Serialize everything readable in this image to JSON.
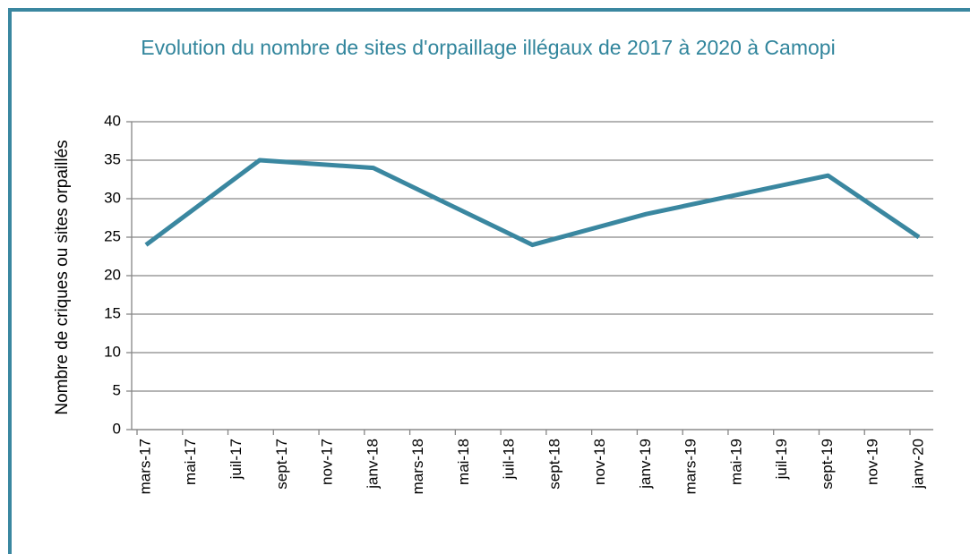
{
  "chart_data": {
    "type": "line",
    "title": "Evolution du nombre de sites d'orpaillage illégaux de 2017 à 2020 à Camopi",
    "y_label": "Nombre de criques ou sites orpaillés",
    "x": [
      "2017-03",
      "2017-08",
      "2018-01",
      "2018-08",
      "2019-01",
      "2019-09",
      "2020-01"
    ],
    "series": [
      {
        "name": "Sites orpaillés",
        "color": "#3a87a0",
        "values": [
          24,
          35,
          34,
          24,
          28,
          33,
          25
        ]
      }
    ],
    "xlim": [
      "2017-03",
      "2020-01"
    ],
    "xticks": [
      {
        "value": "2017-03",
        "label": "mars-17"
      },
      {
        "value": "2017-05",
        "label": "mai-17"
      },
      {
        "value": "2017-07",
        "label": "juil-17"
      },
      {
        "value": "2017-09",
        "label": "sept-17"
      },
      {
        "value": "2017-11",
        "label": "nov-17"
      },
      {
        "value": "2018-01",
        "label": "janv-18"
      },
      {
        "value": "2018-03",
        "label": "mars-18"
      },
      {
        "value": "2018-05",
        "label": "mai-18"
      },
      {
        "value": "2018-07",
        "label": "juil-18"
      },
      {
        "value": "2018-09",
        "label": "sept-18"
      },
      {
        "value": "2018-11",
        "label": "nov-18"
      },
      {
        "value": "2019-01",
        "label": "janv-19"
      },
      {
        "value": "2019-03",
        "label": "mars-19"
      },
      {
        "value": "2019-05",
        "label": "mai-19"
      },
      {
        "value": "2019-07",
        "label": "juil-19"
      },
      {
        "value": "2019-09",
        "label": "sept-19"
      },
      {
        "value": "2019-11",
        "label": "nov-19"
      },
      {
        "value": "2020-01",
        "label": "janv-20"
      }
    ],
    "ylim": [
      0,
      40
    ],
    "yticks": [
      0,
      5,
      10,
      15,
      20,
      25,
      30,
      35,
      40
    ],
    "grid": true
  }
}
